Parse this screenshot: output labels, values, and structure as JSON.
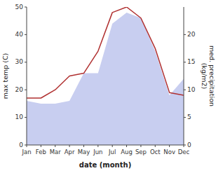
{
  "chart_data": {
    "type": "line",
    "categories": [
      "Jan",
      "Feb",
      "Mar",
      "Apr",
      "May",
      "Jun",
      "Jul",
      "Aug",
      "Sep",
      "Oct",
      "Nov",
      "Dec"
    ],
    "series": [
      {
        "type": "area",
        "axis": "y2",
        "color": "#c8cef0",
        "values": [
          8,
          7.5,
          7.5,
          8,
          13,
          13,
          22,
          24,
          23,
          17,
          9,
          12
        ]
      },
      {
        "type": "line",
        "color": "#b03030",
        "values": [
          17,
          17,
          20,
          25,
          26,
          34,
          48,
          50,
          46,
          35,
          19,
          18
        ]
      }
    ],
    "x_label": "date (month)",
    "y_label": "max temp (C)",
    "y2_label": "med. precipitation\n(kg/m2)",
    "ylim": [
      0,
      50
    ],
    "yticks": [
      0,
      10,
      20,
      30,
      40,
      50
    ],
    "y2lim": [
      0,
      25
    ],
    "y2ticks": [
      0,
      5,
      10,
      15,
      20
    ],
    "grid": false
  }
}
